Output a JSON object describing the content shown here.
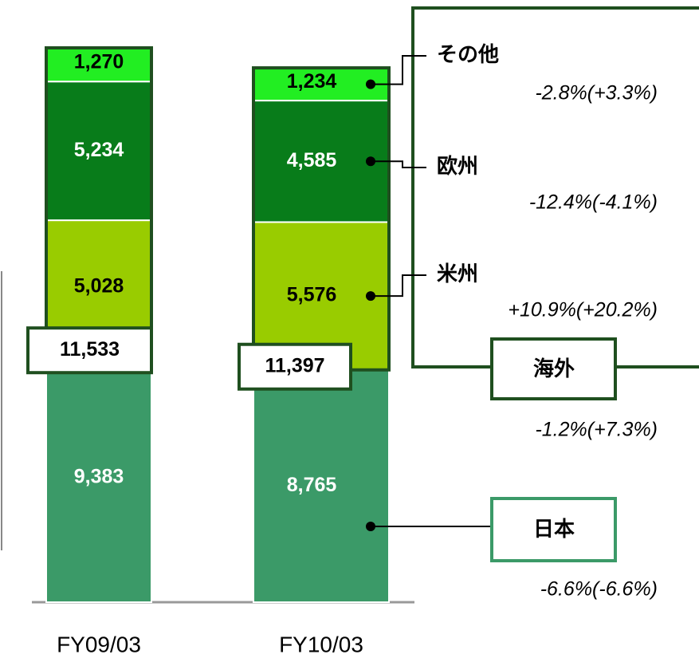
{
  "chart_data": {
    "type": "stacked_bar",
    "categories": [
      "FY09/03",
      "FY10/03"
    ],
    "series": [
      {
        "name": "日本",
        "color": "#3b9a68",
        "values": [
          9383,
          8765
        ],
        "value_labels": [
          "9,383",
          "8,765"
        ],
        "change": "-6.6%(-6.6%)"
      },
      {
        "name": "米州",
        "color": "#99cc00",
        "values": [
          5028,
          5576
        ],
        "value_labels": [
          "5,028",
          "5,576"
        ],
        "change": "+10.9%(+20.2%)"
      },
      {
        "name": "欧州",
        "color": "#087c1a",
        "values": [
          5234,
          4585
        ],
        "value_labels": [
          "5,234",
          "4,585"
        ],
        "change": "-12.4%(-4.1%)"
      },
      {
        "name": "その他",
        "color": "#22ee22",
        "values": [
          1270,
          1234
        ],
        "value_labels": [
          "1,270",
          "1,234"
        ],
        "change": "-2.8%(+3.3%)"
      }
    ],
    "overseas": {
      "name": "海外",
      "values": [
        11533,
        11397
      ],
      "value_labels": [
        "11,533",
        "11,397"
      ],
      "change": "-1.2%(+7.3%)"
    }
  }
}
